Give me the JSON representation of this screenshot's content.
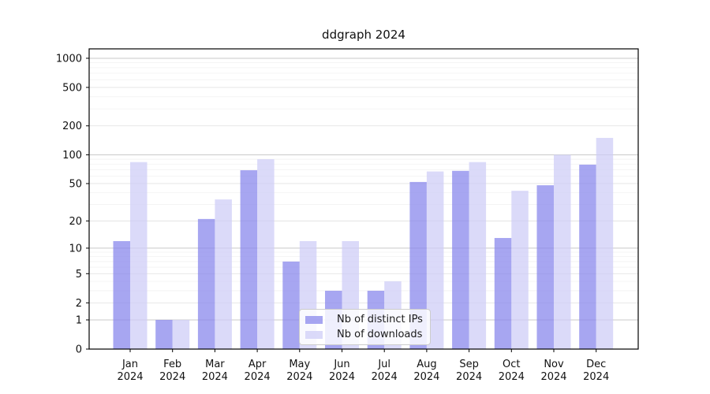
{
  "chart_data": {
    "type": "bar",
    "title": "ddgraph 2024",
    "year": "2024",
    "categories": [
      "Jan",
      "Feb",
      "Mar",
      "Apr",
      "May",
      "Jun",
      "Jul",
      "Aug",
      "Sep",
      "Oct",
      "Nov",
      "Dec"
    ],
    "series": [
      {
        "name": "Nb of distinct IPs",
        "color": "#8583ec",
        "values": [
          12,
          1,
          21,
          69,
          7,
          3,
          3,
          52,
          68,
          13,
          48,
          79
        ]
      },
      {
        "name": "Nb of downloads",
        "color": "#cdccf6",
        "values": [
          84,
          1,
          34,
          90,
          12,
          12,
          4,
          67,
          84,
          42,
          100,
          150
        ]
      }
    ],
    "bar_alpha": 0.72,
    "scale": "log10(1+v)",
    "yticks": [
      0,
      1,
      2,
      5,
      10,
      20,
      50,
      100,
      200,
      500,
      1000
    ],
    "ytick_labels": [
      "0",
      "1",
      "2",
      "5",
      "10",
      "20",
      "50",
      "100",
      "200",
      "500",
      "1000"
    ],
    "minor_gridlines": [
      3,
      4,
      6,
      7,
      8,
      9,
      30,
      40,
      60,
      70,
      80,
      90,
      300,
      400,
      600,
      700,
      800,
      900
    ],
    "medium_gridlines": [
      2,
      5,
      20,
      50,
      200,
      500
    ],
    "major_gridlines": [
      1,
      10,
      100,
      1000
    ],
    "ylim": [
      0,
      1250
    ],
    "grid": true,
    "legend_position": "lower center",
    "colors": {
      "spine": "#000000",
      "major_grid": "#c9c9c9",
      "medium_grid": "#e3e3e3",
      "minor_grid": "#f2f2f2",
      "tick_text": "#111111",
      "background": "#ffffff"
    }
  }
}
